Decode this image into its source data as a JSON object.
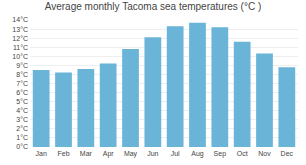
{
  "chart_data": {
    "type": "bar",
    "title": "Average monthly Tacoma sea temperatures (°C )",
    "categories": [
      "Jan",
      "Feb",
      "Mar",
      "Apr",
      "May",
      "Jun",
      "Jul",
      "Aug",
      "Sep",
      "Oct",
      "Nov",
      "Dec"
    ],
    "values": [
      8.5,
      8.2,
      8.6,
      9.2,
      10.8,
      12.1,
      13.3,
      13.7,
      13.2,
      11.6,
      10.3,
      8.8
    ],
    "color": "#6ab4d8",
    "ylim": [
      0,
      14
    ],
    "yticks": [
      {
        "value": 0,
        "label": "0°C"
      },
      {
        "value": 1,
        "label": "1°C"
      },
      {
        "value": 2,
        "label": "2°C"
      },
      {
        "value": 3,
        "label": "3°C"
      },
      {
        "value": 4,
        "label": "4°C"
      },
      {
        "value": 5,
        "label": "5°C"
      },
      {
        "value": 6,
        "label": "6°C"
      },
      {
        "value": 7,
        "label": "7°C"
      },
      {
        "value": 8,
        "label": "8°C"
      },
      {
        "value": 9,
        "label": "9°C"
      },
      {
        "value": 10,
        "label": "10°C"
      },
      {
        "value": 11,
        "label": "11°C"
      },
      {
        "value": 12,
        "label": "12°C"
      },
      {
        "value": 13,
        "label": "13°C"
      },
      {
        "value": 14,
        "label": "14°C"
      }
    ],
    "grid": true
  }
}
